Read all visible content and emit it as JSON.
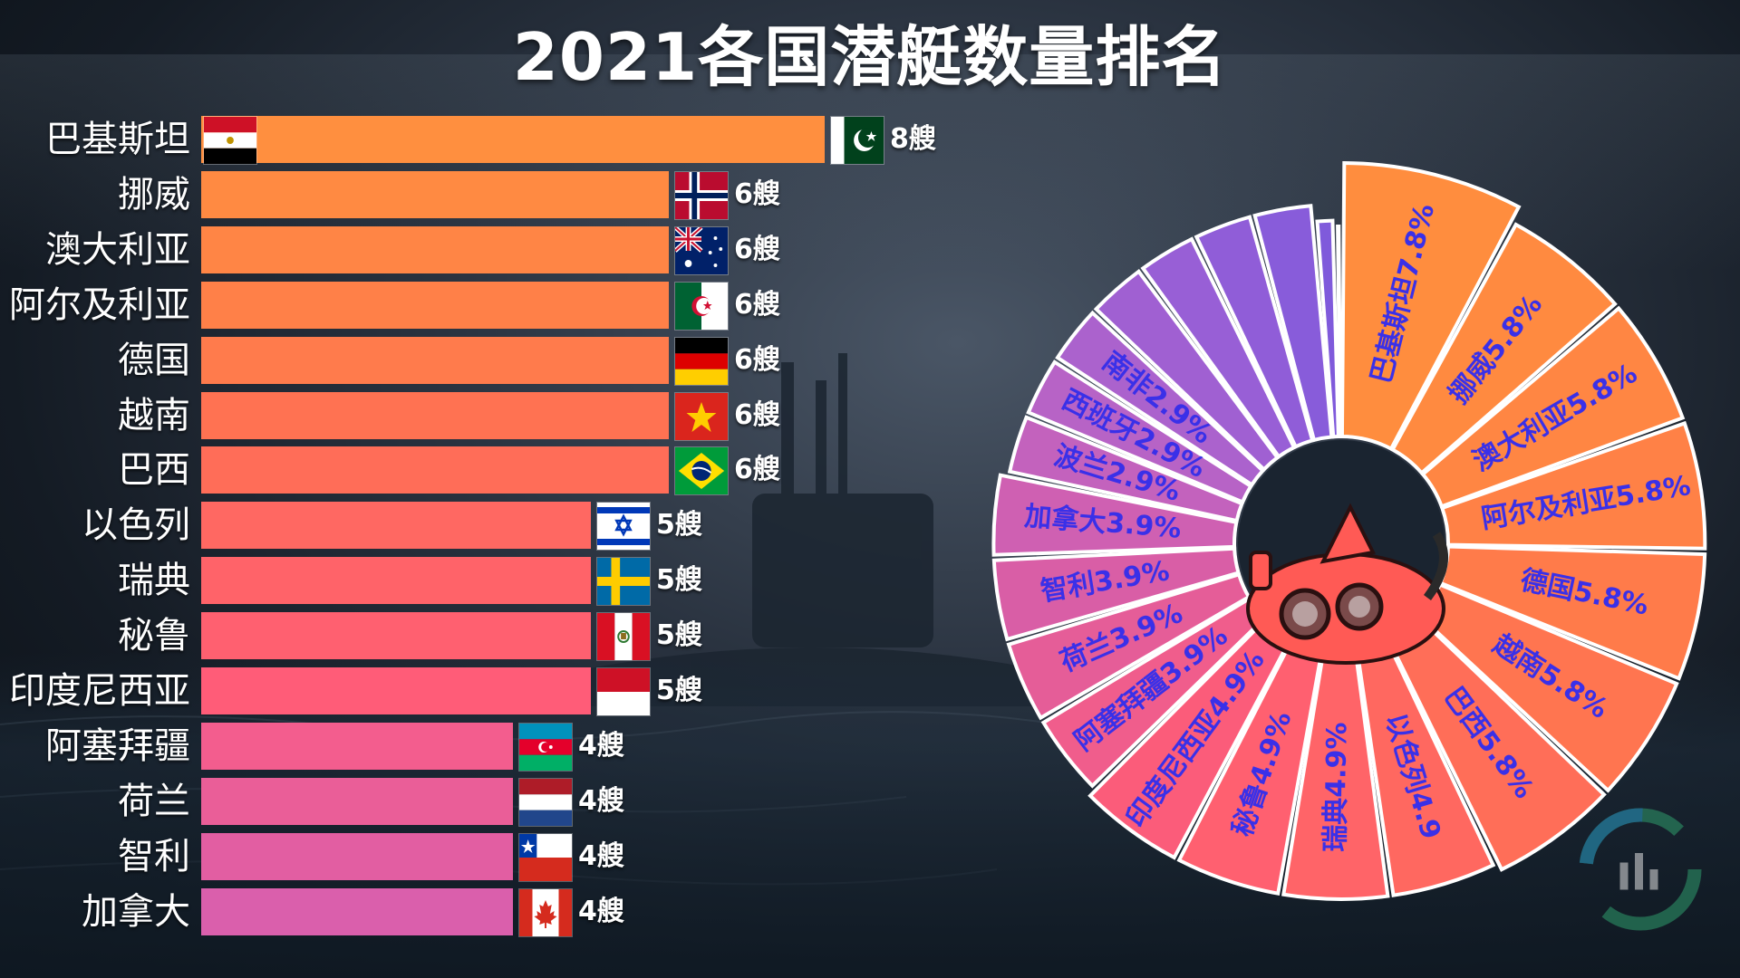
{
  "title": "2021各国潜艇数量排名",
  "unit": "艘",
  "chart_data": [
    {
      "type": "bar",
      "orientation": "horizontal",
      "categories": [
        "巴基斯坦",
        "挪威",
        "澳大利亚",
        "阿尔及利亚",
        "德国",
        "越南",
        "巴西",
        "以色列",
        "瑞典",
        "秘鲁",
        "印度尼西亚",
        "阿塞拜疆",
        "荷兰",
        "智利",
        "加拿大"
      ],
      "values": [
        8,
        6,
        6,
        6,
        6,
        6,
        6,
        5,
        5,
        5,
        5,
        4,
        4,
        4,
        4
      ],
      "value_labels": [
        "8艘",
        "6艘",
        "6艘",
        "6艘",
        "6艘",
        "6艘",
        "6艘",
        "5艘",
        "5艘",
        "5艘",
        "5艘",
        "4艘",
        "4艘",
        "4艘",
        "4艘"
      ],
      "flags": [
        "egypt+pakistan",
        "norway",
        "australia",
        "algeria",
        "germany",
        "vietnam",
        "brazil",
        "israel",
        "sweden",
        "peru",
        "indonesia",
        "azerbaijan",
        "netherlands",
        "chile",
        "canada"
      ],
      "colors": [
        "#ff8f3f",
        "#ff8a42",
        "#ff8545",
        "#ff8048",
        "#ff7b4c",
        "#ff7252",
        "#ff6d58",
        "#ff6862",
        "#ff6369",
        "#ff6070",
        "#ff5c78",
        "#f35d8e",
        "#ea5e98",
        "#e25ea2",
        "#da5fac"
      ]
    },
    {
      "type": "pie",
      "style": "donut",
      "segments": [
        {
          "label": "巴基斯坦7.8%",
          "value": 7.8,
          "color": "#ff8d3e"
        },
        {
          "label": "挪威5.8%",
          "value": 5.8,
          "color": "#ff8a40"
        },
        {
          "label": "澳大利亚5.8%",
          "value": 5.8,
          "color": "#ff8643"
        },
        {
          "label": "阿尔及利亚5.8%",
          "value": 5.8,
          "color": "#ff8146"
        },
        {
          "label": "德国5.8%",
          "value": 5.8,
          "color": "#ff7b4a"
        },
        {
          "label": "越南5.8%",
          "value": 5.8,
          "color": "#ff7550"
        },
        {
          "label": "巴西5.8%",
          "value": 5.8,
          "color": "#ff6e58"
        },
        {
          "label": "以色列4.9",
          "value": 4.9,
          "color": "#ff6860"
        },
        {
          "label": "瑞典4.9%",
          "value": 4.9,
          "color": "#ff6468"
        },
        {
          "label": "秘鲁4.9%",
          "value": 4.9,
          "color": "#ff6070"
        },
        {
          "label": "印度尼西亚4.9%",
          "value": 4.9,
          "color": "#fb5c7a"
        },
        {
          "label": "阿塞拜疆3.9%",
          "value": 3.9,
          "color": "#f05d8c"
        },
        {
          "label": "荷兰3.9%",
          "value": 3.9,
          "color": "#e55d98"
        },
        {
          "label": "智利3.9%",
          "value": 3.9,
          "color": "#d95ea6"
        },
        {
          "label": "加拿大3.9%",
          "value": 3.9,
          "color": "#cf60b2"
        },
        {
          "label": "波兰2.9%",
          "value": 2.9,
          "color": "#c362bd"
        },
        {
          "label": "西班牙2.9%",
          "value": 2.9,
          "color": "#b763c6"
        },
        {
          "label": "南非2.9%",
          "value": 2.9,
          "color": "#ab62cd"
        },
        {
          "label": "",
          "value": 2.9,
          "color": "#a060d2"
        },
        {
          "label": "",
          "value": 2.9,
          "color": "#985fd6"
        },
        {
          "label": "",
          "value": 2.9,
          "color": "#905dd8"
        },
        {
          "label": "",
          "value": 2.9,
          "color": "#885cda"
        },
        {
          "label": "",
          "value": 1.0,
          "color": "#7f5adb"
        },
        {
          "label": "",
          "value": 0.3,
          "color": "#7a58dc"
        }
      ],
      "label_color": "#3a30e8"
    }
  ],
  "center_icon": "red-cartoon-submarine-icon",
  "watermark_icon": "chart-logo-watermark-icon"
}
